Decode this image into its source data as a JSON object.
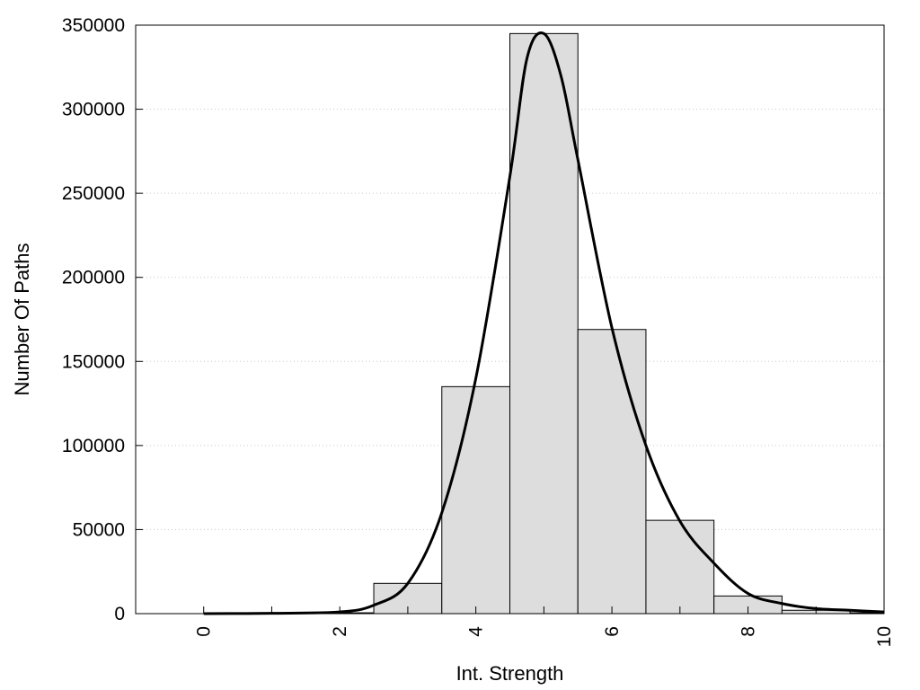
{
  "chart_data": {
    "type": "bar",
    "title": "",
    "xlabel": "Int. Strength",
    "ylabel": "Number Of Paths",
    "xlim": [
      -1,
      10
    ],
    "ylim": [
      0,
      350000
    ],
    "x_ticks": [
      0,
      2,
      4,
      6,
      8,
      10
    ],
    "y_ticks": [
      0,
      50000,
      100000,
      150000,
      200000,
      250000,
      300000,
      350000
    ],
    "grid": "horizontal dotted",
    "legend": "none",
    "bar_color": "#dddddd",
    "bars": [
      {
        "x": 0,
        "value": 0
      },
      {
        "x": 1,
        "value": 0
      },
      {
        "x": 2,
        "value": 500
      },
      {
        "x": 3,
        "value": 18000
      },
      {
        "x": 4,
        "value": 135000
      },
      {
        "x": 5,
        "value": 345000
      },
      {
        "x": 6,
        "value": 169000
      },
      {
        "x": 7,
        "value": 55500
      },
      {
        "x": 8,
        "value": 10500
      },
      {
        "x": 9,
        "value": 2000
      },
      {
        "x": 10,
        "value": 500
      }
    ],
    "curve": {
      "x": [
        0,
        1,
        2,
        2.5,
        3,
        3.5,
        4,
        4.5,
        4.75,
        5,
        5.25,
        5.5,
        6,
        6.5,
        7,
        7.5,
        8,
        8.5,
        9,
        9.5,
        10
      ],
      "y": [
        0,
        200,
        1000,
        5000,
        18000,
        60000,
        140000,
        260000,
        330000,
        345000,
        320000,
        270000,
        170000,
        100000,
        55000,
        30000,
        12000,
        6000,
        3000,
        2000,
        1000
      ]
    }
  }
}
